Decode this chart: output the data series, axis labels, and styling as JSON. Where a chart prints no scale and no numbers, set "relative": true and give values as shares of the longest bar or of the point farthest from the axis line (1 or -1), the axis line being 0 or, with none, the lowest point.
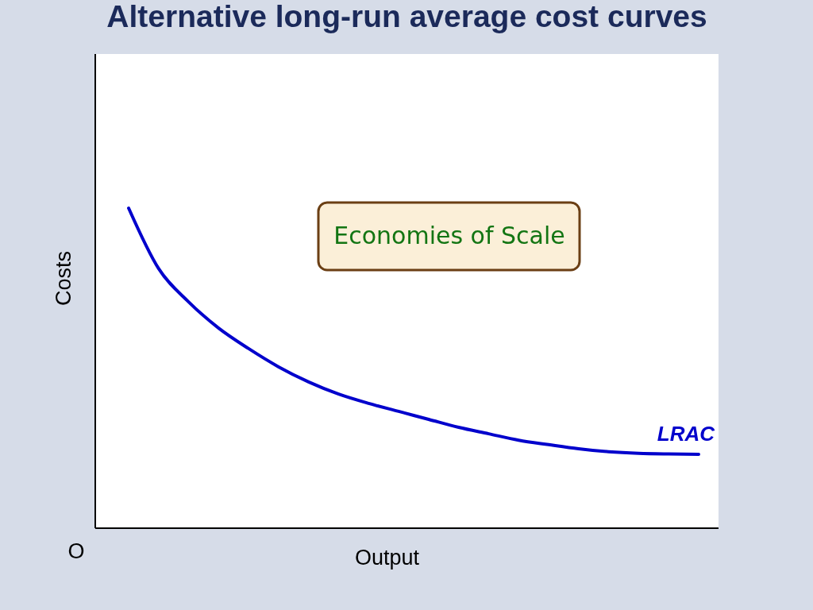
{
  "chart_data": {
    "type": "line",
    "title": "Alternative long-run average cost curves",
    "xlabel": "Output",
    "ylabel": "Costs",
    "annotations": [
      "Economies of Scale",
      "O"
    ],
    "relative": true,
    "line_style": "solid",
    "marker": "none",
    "categories": [
      null,
      null,
      null,
      null,
      null,
      null,
      null,
      null,
      null,
      null,
      null,
      null,
      null,
      null,
      null,
      null,
      null,
      null,
      null,
      null
    ],
    "series": [
      {
        "name": "LRAC",
        "color": "#0000cc",
        "values": [
          1.0,
          0.811,
          0.707,
          0.625,
          0.561,
          0.504,
          0.457,
          0.419,
          0.39,
          0.365,
          0.34,
          0.315,
          0.295,
          0.275,
          0.261,
          0.248,
          0.239,
          0.234,
          0.232,
          0.231
        ]
      }
    ]
  }
}
